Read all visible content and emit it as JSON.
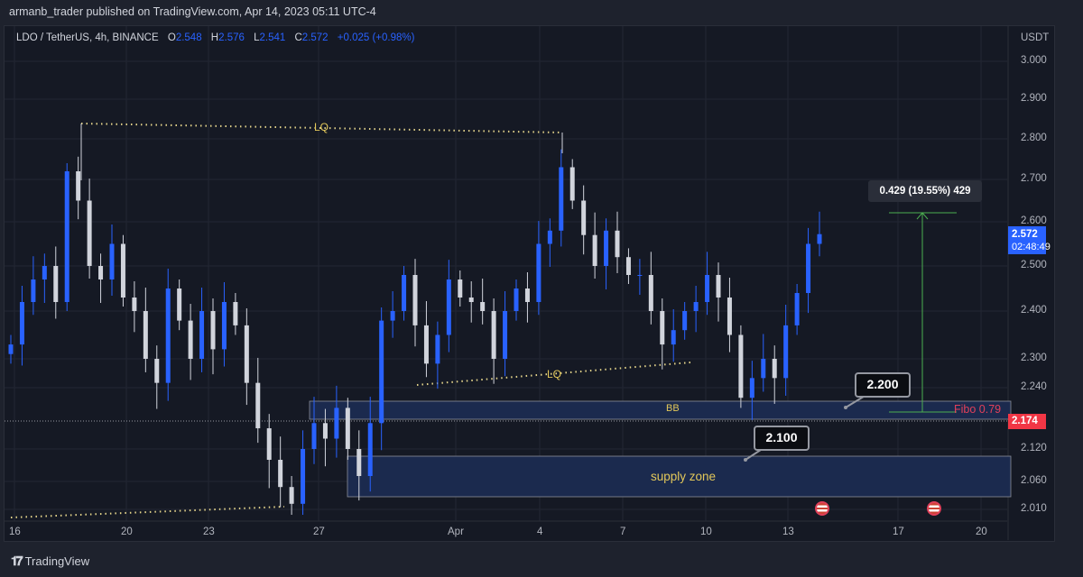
{
  "header": {
    "published": "armanb_trader published on TradingView.com, Apr 14, 2023 05:11 UTC-4"
  },
  "legend": {
    "symbol": "LDO / TetherUS, 4h, BINANCE",
    "open_label": "O",
    "open": "2.548",
    "high_label": "H",
    "high": "2.576",
    "low_label": "L",
    "low": "2.541",
    "close_label": "C",
    "close": "2.572",
    "change": "+0.025 (+0.98%)"
  },
  "price_axis": {
    "currency": "USDT",
    "ticks": [
      "3.000",
      "2.900",
      "2.800",
      "2.700",
      "2.600",
      "2.500",
      "2.400",
      "2.300",
      "2.240",
      "2.120",
      "2.060",
      "2.010"
    ],
    "last_price": "2.572",
    "countdown": "02:48:49",
    "line_price": "2.174"
  },
  "time_axis": {
    "ticks": [
      "16",
      "20",
      "23",
      "27",
      "Apr",
      "4",
      "7",
      "10",
      "13",
      "17",
      "20"
    ]
  },
  "drawings": {
    "lq_top": "LQ",
    "lq_mid": "LQ",
    "bb_label": "BB",
    "supply_label": "supply zone",
    "callout_upper": "2.200",
    "callout_lower": "2.100",
    "measure_label": "0.429 (19.55%) 429",
    "fibo_label": "Fibo 0.79"
  },
  "colors": {
    "up": "#2962ff",
    "down": "#d1d4dc",
    "lq": "#e3d38a",
    "measure": "#4caf50",
    "fibo": "#e0405a",
    "last": "#2962ff",
    "line": "#f23645"
  },
  "chart_data": {
    "type": "candlestick",
    "symbol": "LDO/USDT",
    "interval": "4h",
    "ylim": [
      2.0,
      3.02
    ],
    "closes": [
      2.33,
      2.42,
      2.47,
      2.5,
      2.42,
      2.72,
      2.65,
      2.5,
      2.47,
      2.55,
      2.43,
      2.4,
      2.3,
      2.25,
      2.45,
      2.38,
      2.3,
      2.4,
      2.32,
      2.42,
      2.37,
      2.25,
      2.16,
      2.1,
      2.05,
      2.02,
      2.12,
      2.17,
      2.14,
      2.2,
      2.12,
      2.07,
      2.17,
      2.38,
      2.4,
      2.48,
      2.37,
      2.29,
      2.35,
      2.47,
      2.43,
      2.42,
      2.4,
      2.3,
      2.4,
      2.45,
      2.42,
      2.55,
      2.58,
      2.73,
      2.65,
      2.57,
      2.5,
      2.58,
      2.52,
      2.48,
      2.48,
      2.4,
      2.33,
      2.36,
      2.4,
      2.42,
      2.48,
      2.43,
      2.35,
      2.22,
      2.26,
      2.3,
      2.26,
      2.37,
      2.44,
      2.55,
      2.572
    ]
  },
  "footer": {
    "brand": "TradingView"
  }
}
